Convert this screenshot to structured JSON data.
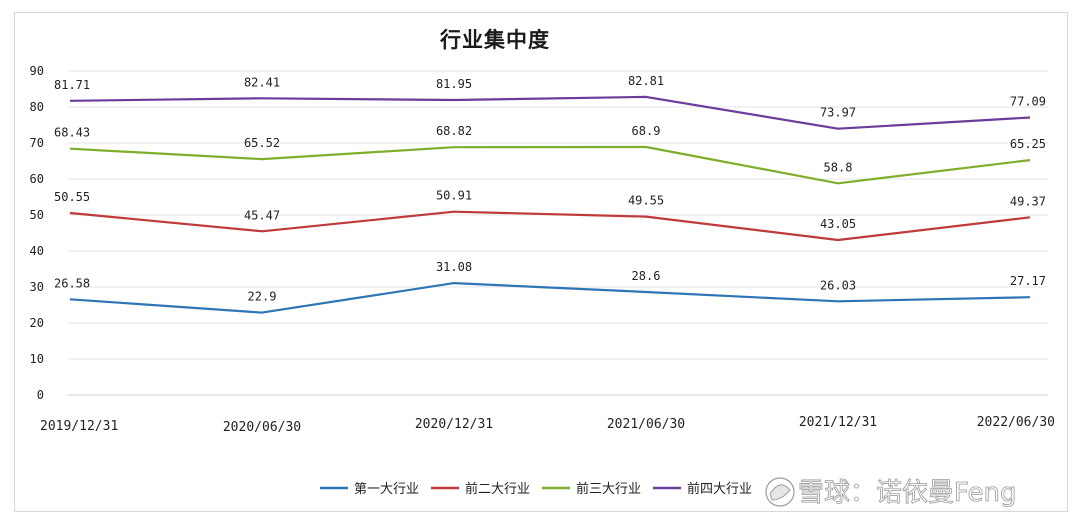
{
  "chart_data": {
    "type": "line",
    "title": "行业集中度",
    "xlabel": "",
    "ylabel": "",
    "ylim": [
      0,
      90
    ],
    "yticks": [
      0,
      10,
      20,
      30,
      40,
      50,
      60,
      70,
      80,
      90
    ],
    "grid": true,
    "legend_position": "bottom",
    "categories": [
      "2019/12/31",
      "2020/06/30",
      "2020/12/31",
      "2021/06/30",
      "2021/12/31",
      "2022/06/30"
    ],
    "series": [
      {
        "name": "第一大行业",
        "color": "#2e75b6",
        "values": [
          26.58,
          22.9,
          31.08,
          28.6,
          26.03,
          27.17
        ],
        "labels": [
          "26.58",
          "22.9",
          "31.08",
          "28.6",
          "26.03",
          "27.17"
        ]
      },
      {
        "name": "前二大行业",
        "color": "#c0393b",
        "values": [
          50.55,
          45.47,
          50.91,
          49.55,
          43.05,
          49.37
        ],
        "labels": [
          "50.55",
          "45.47",
          "50.91",
          "49.55",
          "43.05",
          "49.37"
        ]
      },
      {
        "name": "前三大行业",
        "color": "#7fae2b",
        "values": [
          68.43,
          65.52,
          68.82,
          68.9,
          58.8,
          65.25
        ],
        "labels": [
          "68.43",
          "65.52",
          "68.82",
          "68.9",
          "58.8",
          "65.25"
        ]
      },
      {
        "name": "前四大行业",
        "color": "#6a3d9a",
        "values": [
          81.71,
          82.41,
          81.95,
          82.81,
          73.97,
          77.09
        ],
        "labels": [
          "81.71",
          "82.41",
          "81.95",
          "82.81",
          "73.97",
          "77.09"
        ]
      }
    ]
  },
  "watermark": "雪球：诺依曼Feng",
  "watermark_icon": "snowball-logo-icon"
}
